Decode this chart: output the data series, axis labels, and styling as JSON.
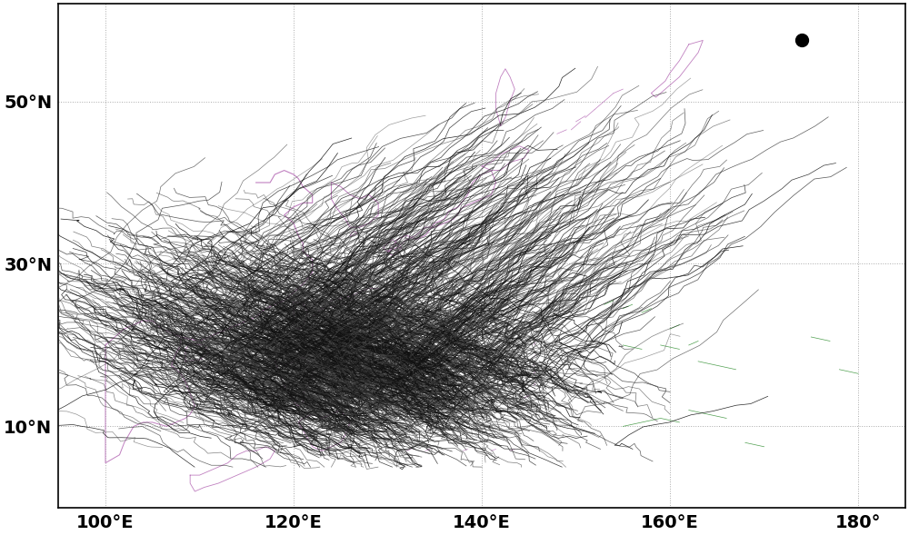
{
  "lon_min": 95,
  "lon_max": 185,
  "lat_min": 0,
  "lat_max": 62,
  "xticks": [
    100,
    120,
    140,
    160,
    180
  ],
  "yticks": [
    10,
    30,
    50
  ],
  "xlabel_labels": [
    "100°E",
    "120°E",
    "140°E",
    "160°E",
    "180°"
  ],
  "ylabel_labels": [
    "10°N",
    "30°N",
    "50°N"
  ],
  "background_color": "#ffffff",
  "coastline_color_pink": "#c080c0",
  "coastline_color_green": "#50a050",
  "track_color_dark": "#111111",
  "track_color_mid": "#444444",
  "grid_color": "#aaaaaa",
  "num_tracks": 1200,
  "genesis_lon_mean": 132,
  "genesis_lon_std": 10,
  "genesis_lat_mean": 13,
  "genesis_lat_std": 4,
  "dot_lon": 174,
  "dot_lat": 57.5,
  "dot_size": 10,
  "dot_color": "#000000",
  "figsize": [
    10.0,
    5.89
  ],
  "dpi": 100,
  "tick_fontsize": 14
}
